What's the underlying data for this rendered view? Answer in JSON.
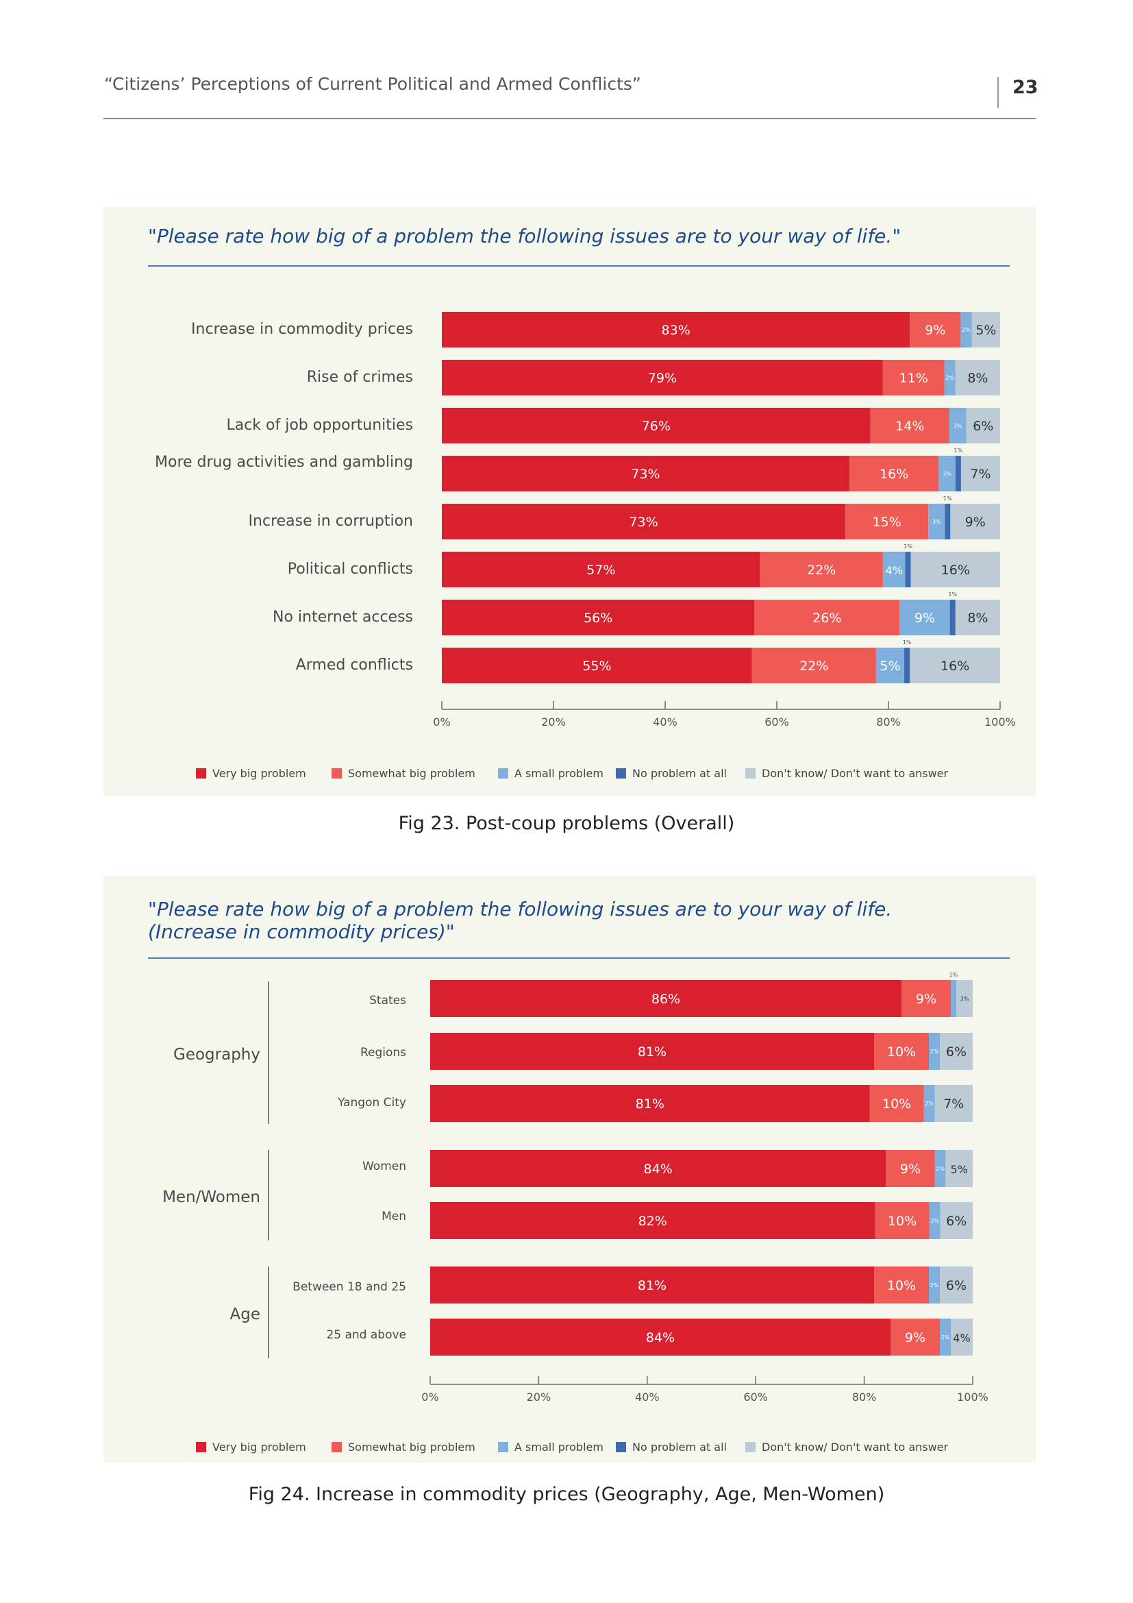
{
  "header": {
    "title": "“Citizens’ Perceptions of Current Political and Armed Conflicts”",
    "page_number": "23"
  },
  "colors": {
    "very_big": "#d8202f",
    "somewhat_big": "#ef5a55",
    "small": "#7fb0dd",
    "none": "#3c6bb0",
    "dont_know": "#bdcbd6",
    "axis": "#6a6a6a"
  },
  "legend": [
    "Very big problem",
    "Somewhat big problem",
    "A small problem",
    "No problem at all",
    "Don't know/ Don't want to answer"
  ],
  "fig23": {
    "question": "\"Please rate how big of a problem the following issues are to your way of life.\"",
    "caption": "Fig 23. Post-coup problems (Overall)"
  },
  "fig24": {
    "question": "\"Please rate how big of a problem the following issues are to your way of life. (Increase in commodity prices)\"",
    "caption": "Fig 24. Increase in commodity prices (Geography, Age, Men-Women)"
  },
  "chart_data": [
    {
      "type": "bar",
      "orientation": "horizontal",
      "stacked": true,
      "title": "\"Please rate how big of a problem the following issues are to your way of life.\"",
      "categories": [
        "Increase in commodity prices",
        "Rise of crimes",
        "Lack of job opportunities",
        "More drug activities and gambling",
        "Increase in corruption",
        "Political conflicts",
        "No internet access",
        "Armed conflicts"
      ],
      "series": [
        {
          "name": "Very big problem",
          "values": [
            83,
            79,
            76,
            73,
            73,
            57,
            56,
            55
          ],
          "labels": [
            "83%",
            "79%",
            "76%",
            "73%",
            "73%",
            "57%",
            "56%",
            "55%"
          ]
        },
        {
          "name": "Somewhat big problem",
          "values": [
            9,
            11,
            14,
            16,
            15,
            22,
            26,
            22
          ],
          "labels": [
            "9%",
            "11%",
            "14%",
            "16%",
            "15%",
            "22%",
            "26%",
            "22%"
          ]
        },
        {
          "name": "A small problem",
          "values": [
            2,
            2,
            3,
            3,
            3,
            4,
            9,
            5
          ],
          "labels": [
            "2%",
            "2%",
            "3%",
            "3%",
            "3%",
            "4%",
            "9%",
            "5%"
          ]
        },
        {
          "name": "No problem at all",
          "values": [
            0,
            0,
            0,
            1,
            1,
            1,
            1,
            1
          ],
          "labels": [
            "",
            "",
            "",
            "1%",
            "1%",
            "1%",
            "1%",
            "1%"
          ]
        },
        {
          "name": "Don't know/ Don't want to answer",
          "values": [
            5,
            8,
            6,
            7,
            9,
            16,
            8,
            16
          ],
          "labels": [
            "5%",
            "8%",
            "6%",
            "7%",
            "9%",
            "16%",
            "8%",
            "16%"
          ]
        }
      ],
      "xlim": [
        0,
        100
      ],
      "xticks": [
        "0%",
        "20%",
        "40%",
        "60%",
        "80%",
        "100%"
      ],
      "legend_position": "bottom"
    },
    {
      "type": "bar",
      "orientation": "horizontal",
      "stacked": true,
      "title": "\"Please rate how big of a problem the following issues are to your way of life. (Increase in commodity prices)\"",
      "groups": [
        {
          "name": "Geography",
          "categories": [
            "States",
            "Regions",
            "Yangon City"
          ]
        },
        {
          "name": "Men/Women",
          "categories": [
            "Women",
            "Men"
          ]
        },
        {
          "name": "Age",
          "categories": [
            "Between 18 and 25",
            "25 and above"
          ]
        }
      ],
      "categories": [
        "States",
        "Regions",
        "Yangon City",
        "Women",
        "Men",
        "Between 18 and 25",
        "25 and above"
      ],
      "series": [
        {
          "name": "Very big problem",
          "values": [
            86,
            81,
            81,
            84,
            82,
            81,
            84
          ],
          "labels": [
            "86%",
            "81%",
            "81%",
            "84%",
            "82%",
            "81%",
            "84%"
          ]
        },
        {
          "name": "Somewhat big problem",
          "values": [
            9,
            10,
            10,
            9,
            10,
            10,
            9
          ],
          "labels": [
            "9%",
            "10%",
            "10%",
            "9%",
            "10%",
            "10%",
            "9%"
          ]
        },
        {
          "name": "A small problem",
          "values": [
            1,
            2,
            2,
            2,
            2,
            2,
            2
          ],
          "labels": [
            "1%",
            "2%",
            "2%",
            "2%",
            "2%",
            "2%",
            "2%"
          ]
        },
        {
          "name": "No problem at all",
          "values": [
            0,
            0,
            0,
            0,
            0,
            0,
            0
          ],
          "labels": [
            "",
            "",
            "",
            "",
            "",
            "",
            ""
          ]
        },
        {
          "name": "Don't know/ Don't want to answer",
          "values": [
            3,
            6,
            7,
            5,
            6,
            6,
            4
          ],
          "labels": [
            "3%",
            "6%",
            "7%",
            "5%",
            "6%",
            "6%",
            "4%"
          ]
        }
      ],
      "xlim": [
        0,
        100
      ],
      "xticks": [
        "0%",
        "20%",
        "40%",
        "60%",
        "80%",
        "100%"
      ],
      "legend_position": "bottom"
    }
  ]
}
